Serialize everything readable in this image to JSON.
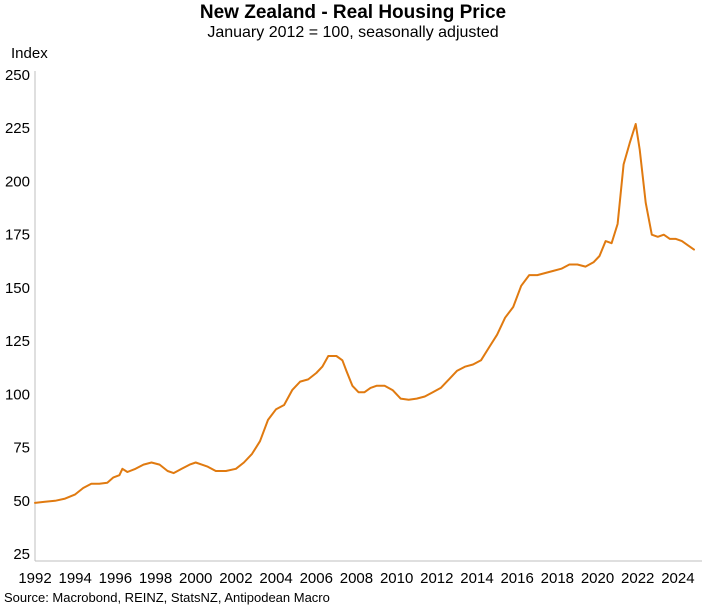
{
  "chart_data": {
    "type": "line",
    "title": "New Zealand - Real Housing Price",
    "subtitle": "January 2012 = 100, seasonally adjusted",
    "ylabel": "Index",
    "xlabel": "",
    "source": "Source: Macrobond, REINZ, StatsNZ, Antipodean Macro",
    "xlim": [
      1992,
      2025.2
    ],
    "ylim": [
      25,
      250
    ],
    "grid": false,
    "legend": "none",
    "x_ticks": [
      "1992",
      "1994",
      "1996",
      "1998",
      "2000",
      "2002",
      "2004",
      "2006",
      "2008",
      "2010",
      "2012",
      "2014",
      "2016",
      "2018",
      "2020",
      "2022",
      "2024"
    ],
    "y_ticks": [
      "25",
      "50",
      "75",
      "100",
      "125",
      "150",
      "175",
      "200",
      "225",
      "250"
    ],
    "series": [
      {
        "color": "#E07A10",
        "x": [
          1992.0,
          1992.5,
          1993.0,
          1993.5,
          1994.0,
          1994.4,
          1994.8,
          1995.2,
          1995.6,
          1995.9,
          1996.2,
          1996.35,
          1996.6,
          1997.0,
          1997.4,
          1997.8,
          1998.2,
          1998.6,
          1998.9,
          1999.3,
          1999.7,
          2000.0,
          2000.3,
          2000.6,
          2001.0,
          2001.5,
          2002.0,
          2002.4,
          2002.8,
          2003.2,
          2003.6,
          2004.0,
          2004.4,
          2004.8,
          2005.2,
          2005.6,
          2006.0,
          2006.3,
          2006.6,
          2007.0,
          2007.3,
          2007.5,
          2007.8,
          2008.1,
          2008.4,
          2008.7,
          2009.0,
          2009.4,
          2009.8,
          2010.2,
          2010.6,
          2011.0,
          2011.4,
          2011.8,
          2012.2,
          2012.6,
          2013.0,
          2013.4,
          2013.8,
          2014.2,
          2014.6,
          2015.0,
          2015.4,
          2015.8,
          2016.2,
          2016.6,
          2017.0,
          2017.4,
          2017.8,
          2018.2,
          2018.6,
          2019.0,
          2019.4,
          2019.8,
          2020.1,
          2020.4,
          2020.7,
          2021.0,
          2021.3,
          2021.6,
          2021.9,
          2022.1,
          2022.4,
          2022.7,
          2023.0,
          2023.3,
          2023.6,
          2023.9,
          2024.2,
          2024.5,
          2024.8
        ],
        "y": [
          49,
          49.5,
          50,
          51,
          53,
          56,
          58,
          58,
          58.5,
          61,
          62,
          65,
          63.5,
          65,
          67,
          68,
          67,
          64,
          63,
          65,
          67,
          68,
          67,
          66,
          64,
          64,
          65,
          68,
          72,
          78,
          88,
          93,
          95,
          102,
          106,
          107,
          110,
          113,
          118,
          118,
          116,
          111,
          104,
          101,
          101,
          103,
          104,
          104,
          102,
          98,
          97.5,
          98,
          99,
          101,
          103,
          107,
          111,
          113,
          114,
          116,
          122,
          128,
          136,
          141,
          151,
          156,
          156,
          157,
          158,
          159,
          161,
          161,
          160,
          162,
          165,
          172,
          171,
          180,
          208,
          218,
          227,
          215,
          190,
          175,
          174,
          175,
          173,
          173,
          172,
          170,
          168
        ]
      }
    ]
  }
}
